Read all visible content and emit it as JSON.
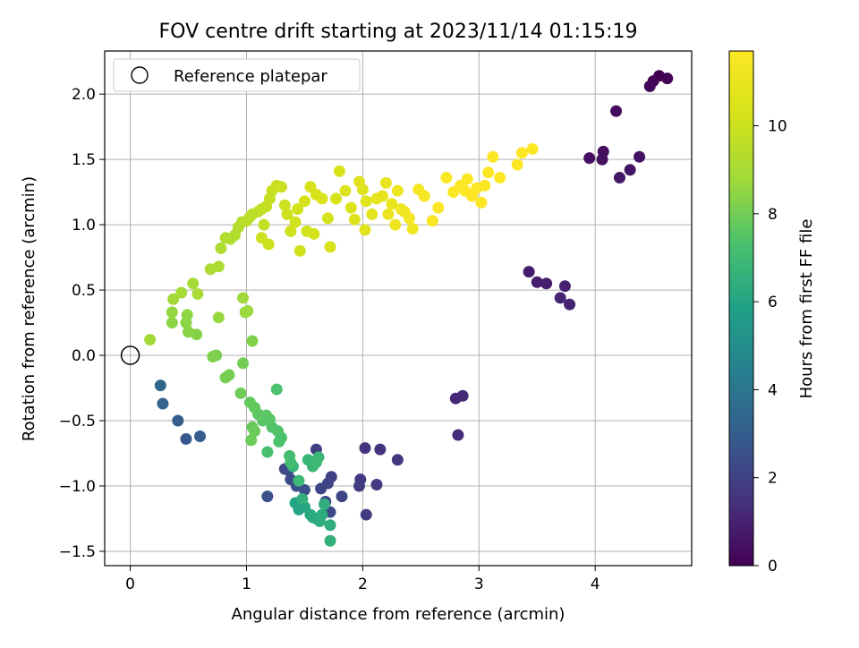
{
  "chart_data": {
    "type": "scatter",
    "title": "FOV centre drift starting at 2023/11/14 01:15:19",
    "xlabel": "Angular distance from reference (arcmin)",
    "ylabel": "Rotation from reference (arcmin)",
    "xlim": [
      -0.22,
      4.83
    ],
    "ylim": [
      -1.61,
      2.33
    ],
    "xticks": [
      0,
      1,
      2,
      3,
      4
    ],
    "yticks": [
      -1.5,
      -1.0,
      -0.5,
      0.0,
      0.5,
      1.0,
      1.5,
      2.0
    ],
    "xtick_labels": [
      "0",
      "1",
      "2",
      "3",
      "4"
    ],
    "ytick_labels": [
      "−1.5",
      "−1.0",
      "−0.5",
      "0.0",
      "0.5",
      "1.0",
      "1.5",
      "2.0"
    ],
    "grid": true,
    "legend": {
      "placement": "top-left",
      "entries": [
        "Reference platepar"
      ]
    },
    "reference_point": {
      "name": "Reference platepar",
      "x": 0.0,
      "y": 0.0,
      "marker": "open-circle"
    },
    "colorbar": {
      "label": "Hours from first FF file",
      "colormap": "viridis",
      "range": [
        0,
        11.7
      ],
      "ticks": [
        0,
        2,
        4,
        6,
        8,
        10
      ],
      "tick_labels": [
        "0",
        "2",
        "4",
        "6",
        "8",
        "10"
      ]
    },
    "point_columns": [
      "x",
      "y",
      "hours"
    ],
    "points": [
      [
        4.55,
        2.14,
        0.0
      ],
      [
        4.62,
        2.12,
        0.05
      ],
      [
        4.5,
        2.1,
        0.1
      ],
      [
        4.47,
        2.06,
        0.15
      ],
      [
        4.18,
        1.87,
        0.3
      ],
      [
        4.07,
        1.56,
        0.4
      ],
      [
        3.95,
        1.51,
        0.45
      ],
      [
        4.06,
        1.5,
        0.5
      ],
      [
        4.38,
        1.52,
        0.55
      ],
      [
        4.3,
        1.42,
        0.6
      ],
      [
        4.21,
        1.36,
        0.65
      ],
      [
        3.43,
        0.64,
        0.8
      ],
      [
        3.5,
        0.56,
        0.85
      ],
      [
        3.58,
        0.55,
        0.9
      ],
      [
        3.74,
        0.53,
        0.95
      ],
      [
        3.7,
        0.44,
        1.0
      ],
      [
        3.78,
        0.39,
        1.05
      ],
      [
        2.8,
        -0.33,
        1.2
      ],
      [
        2.86,
        -0.31,
        1.25
      ],
      [
        2.82,
        -0.61,
        1.3
      ],
      [
        2.02,
        -0.71,
        1.5
      ],
      [
        2.15,
        -0.72,
        1.55
      ],
      [
        2.3,
        -0.8,
        1.6
      ],
      [
        1.98,
        -0.95,
        1.7
      ],
      [
        2.12,
        -0.99,
        1.75
      ],
      [
        1.97,
        -1.0,
        1.8
      ],
      [
        2.03,
        -1.22,
        1.85
      ],
      [
        1.6,
        -0.72,
        1.95
      ],
      [
        1.73,
        -0.93,
        2.0
      ],
      [
        1.7,
        -0.98,
        2.05
      ],
      [
        1.64,
        -1.02,
        2.1
      ],
      [
        1.82,
        -1.08,
        2.15
      ],
      [
        1.68,
        -1.12,
        2.2
      ],
      [
        1.72,
        -1.2,
        2.25
      ],
      [
        1.33,
        -0.87,
        2.3
      ],
      [
        1.38,
        -0.95,
        2.35
      ],
      [
        1.36,
        -0.88,
        2.4
      ],
      [
        1.43,
        -1.0,
        2.45
      ],
      [
        1.5,
        -1.03,
        2.5
      ],
      [
        1.18,
        -1.08,
        2.55
      ],
      [
        0.48,
        -0.64,
        2.8
      ],
      [
        0.6,
        -0.62,
        2.9
      ],
      [
        0.41,
        -0.5,
        3.0
      ],
      [
        0.28,
        -0.37,
        3.2
      ],
      [
        0.26,
        -0.23,
        3.4
      ],
      [
        1.42,
        -1.13,
        6.0
      ],
      [
        1.45,
        -1.18,
        6.05
      ],
      [
        1.5,
        -1.16,
        6.1
      ],
      [
        1.55,
        -1.22,
        6.15
      ],
      [
        1.6,
        -1.25,
        6.2
      ],
      [
        1.57,
        -1.24,
        6.25
      ],
      [
        1.65,
        -1.22,
        6.3
      ],
      [
        1.63,
        -1.27,
        6.35
      ],
      [
        1.72,
        -1.3,
        6.4
      ],
      [
        1.67,
        -1.14,
        6.45
      ],
      [
        1.48,
        -1.1,
        6.5
      ],
      [
        1.72,
        -1.42,
        6.55
      ],
      [
        1.4,
        -0.85,
        6.7
      ],
      [
        1.53,
        -0.8,
        6.75
      ],
      [
        1.57,
        -0.85,
        6.8
      ],
      [
        1.62,
        -0.78,
        6.85
      ],
      [
        1.45,
        -0.96,
        6.9
      ],
      [
        1.6,
        -0.82,
        6.95
      ],
      [
        1.37,
        -0.77,
        7.1
      ],
      [
        1.38,
        -0.82,
        7.15
      ],
      [
        1.18,
        -0.74,
        7.2
      ],
      [
        1.3,
        -0.63,
        7.25
      ],
      [
        1.28,
        -0.66,
        7.3
      ],
      [
        1.26,
        -0.26,
        7.35
      ],
      [
        1.27,
        -0.58,
        7.4
      ],
      [
        1.22,
        -0.55,
        7.45
      ],
      [
        1.2,
        -0.49,
        7.5
      ],
      [
        1.14,
        -0.5,
        7.55
      ],
      [
        1.17,
        -0.46,
        7.6
      ],
      [
        1.1,
        -0.45,
        7.65
      ],
      [
        1.07,
        -0.4,
        7.7
      ],
      [
        1.03,
        -0.36,
        7.75
      ],
      [
        1.05,
        -0.55,
        7.8
      ],
      [
        1.07,
        -0.58,
        7.85
      ],
      [
        1.04,
        -0.65,
        7.9
      ],
      [
        0.95,
        -0.29,
        7.95
      ],
      [
        0.97,
        -0.06,
        8.0
      ],
      [
        0.85,
        -0.15,
        8.05
      ],
      [
        0.82,
        -0.17,
        8.1
      ],
      [
        0.74,
        0.0,
        8.15
      ],
      [
        0.71,
        -0.01,
        8.2
      ],
      [
        1.05,
        0.11,
        8.25
      ],
      [
        0.57,
        0.16,
        8.3
      ],
      [
        0.5,
        0.18,
        8.35
      ],
      [
        0.48,
        0.25,
        8.4
      ],
      [
        0.36,
        0.25,
        8.45
      ],
      [
        0.49,
        0.31,
        8.5
      ],
      [
        0.36,
        0.33,
        8.55
      ],
      [
        0.76,
        0.29,
        8.6
      ],
      [
        0.99,
        0.33,
        8.65
      ],
      [
        1.01,
        0.34,
        8.7
      ],
      [
        0.97,
        0.44,
        8.75
      ],
      [
        0.17,
        0.12,
        8.8
      ],
      [
        0.37,
        0.43,
        8.85
      ],
      [
        0.44,
        0.48,
        8.9
      ],
      [
        0.54,
        0.55,
        8.95
      ],
      [
        0.58,
        0.47,
        9.0
      ],
      [
        0.69,
        0.66,
        9.05
      ],
      [
        0.76,
        0.68,
        9.1
      ],
      [
        0.78,
        0.82,
        9.15
      ],
      [
        0.82,
        0.9,
        9.2
      ],
      [
        0.86,
        0.89,
        9.25
      ],
      [
        0.9,
        0.92,
        9.3
      ],
      [
        0.93,
        0.98,
        9.35
      ],
      [
        0.96,
        1.02,
        9.4
      ],
      [
        1.0,
        1.03,
        9.45
      ],
      [
        1.03,
        1.06,
        9.5
      ],
      [
        1.05,
        1.08,
        9.55
      ],
      [
        1.1,
        1.1,
        9.6
      ],
      [
        1.13,
        1.12,
        9.65
      ],
      [
        1.15,
        1.0,
        9.7
      ],
      [
        1.17,
        1.14,
        9.75
      ],
      [
        1.2,
        1.2,
        9.8
      ],
      [
        1.22,
        1.26,
        9.85
      ],
      [
        1.26,
        1.3,
        9.9
      ],
      [
        1.3,
        1.29,
        9.95
      ],
      [
        1.33,
        1.15,
        10.0
      ],
      [
        1.35,
        1.08,
        10.05
      ],
      [
        1.38,
        0.95,
        10.1
      ],
      [
        1.42,
        1.02,
        10.15
      ],
      [
        1.44,
        1.12,
        10.2
      ],
      [
        1.5,
        1.18,
        10.25
      ],
      [
        1.55,
        1.29,
        10.3
      ],
      [
        1.6,
        1.23,
        10.35
      ],
      [
        1.65,
        1.2,
        10.4
      ],
      [
        1.13,
        0.9,
        10.0
      ],
      [
        1.19,
        0.85,
        10.05
      ],
      [
        1.46,
        0.8,
        10.1
      ],
      [
        1.52,
        0.95,
        10.15
      ],
      [
        1.58,
        0.93,
        10.2
      ],
      [
        1.7,
        1.05,
        10.25
      ],
      [
        1.72,
        0.83,
        10.3
      ],
      [
        1.77,
        1.2,
        10.35
      ],
      [
        1.8,
        1.41,
        10.4
      ],
      [
        1.85,
        1.26,
        10.45
      ],
      [
        1.9,
        1.13,
        10.5
      ],
      [
        1.93,
        1.04,
        10.55
      ],
      [
        1.97,
        1.33,
        10.6
      ],
      [
        2.0,
        1.27,
        10.65
      ],
      [
        2.03,
        1.18,
        10.7
      ],
      [
        2.02,
        0.96,
        10.75
      ],
      [
        2.08,
        1.08,
        10.8
      ],
      [
        2.12,
        1.2,
        10.85
      ],
      [
        2.17,
        1.22,
        10.9
      ],
      [
        2.2,
        1.32,
        10.95
      ],
      [
        2.22,
        1.08,
        11.0
      ],
      [
        2.25,
        1.16,
        11.05
      ],
      [
        2.28,
        1.0,
        11.1
      ],
      [
        2.3,
        1.26,
        11.15
      ],
      [
        2.33,
        1.12,
        11.2
      ],
      [
        2.36,
        1.1,
        11.25
      ],
      [
        2.4,
        1.05,
        11.3
      ],
      [
        2.43,
        0.97,
        11.35
      ],
      [
        2.48,
        1.27,
        11.4
      ],
      [
        2.53,
        1.22,
        11.45
      ],
      [
        2.6,
        1.03,
        11.5
      ],
      [
        2.65,
        1.13,
        11.55
      ],
      [
        2.72,
        1.36,
        11.6
      ],
      [
        2.78,
        1.25,
        11.65
      ],
      [
        2.84,
        1.3,
        11.7
      ],
      [
        2.9,
        1.35,
        11.7
      ],
      [
        2.94,
        1.22,
        11.7
      ],
      [
        2.98,
        1.28,
        11.7
      ],
      [
        3.02,
        1.17,
        11.7
      ],
      [
        3.08,
        1.4,
        11.7
      ],
      [
        3.12,
        1.52,
        11.7
      ],
      [
        3.18,
        1.36,
        11.7
      ],
      [
        3.33,
        1.46,
        11.7
      ],
      [
        3.37,
        1.55,
        11.7
      ],
      [
        3.46,
        1.58,
        11.7
      ],
      [
        3.05,
        1.3,
        11.7
      ],
      [
        2.88,
        1.26,
        11.7
      ]
    ]
  }
}
